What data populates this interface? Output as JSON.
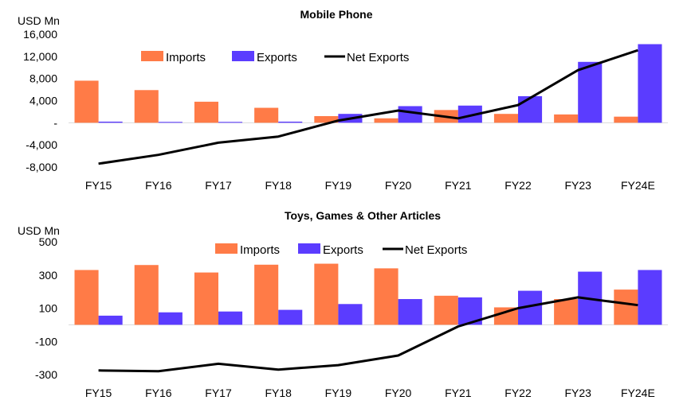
{
  "colors": {
    "imports": "#FF7B47",
    "exports": "#5B3CFF",
    "net": "#000000"
  },
  "chart_data": [
    {
      "type": "bar",
      "title": "Mobile Phone",
      "ylabel": "USD Mn",
      "ylim": [
        -8000,
        16000
      ],
      "yticks": [
        -8000,
        -4000,
        0,
        4000,
        8000,
        12000,
        16000
      ],
      "ytick_labels": [
        "-8,000",
        "-4,000",
        "-",
        "4,000",
        "8,000",
        "12,000",
        "16,000"
      ],
      "categories": [
        "FY15",
        "FY16",
        "FY17",
        "FY18",
        "FY19",
        "FY20",
        "FY21",
        "FY22",
        "FY23",
        "FY24E"
      ],
      "legend": "top",
      "series": [
        {
          "name": "Imports",
          "kind": "bar",
          "values": [
            7600,
            5900,
            3800,
            2700,
            1200,
            800,
            2300,
            1600,
            1500,
            1100
          ]
        },
        {
          "name": "Exports",
          "kind": "bar",
          "values": [
            200,
            150,
            150,
            200,
            1600,
            3000,
            3100,
            4800,
            11000,
            14200
          ]
        },
        {
          "name": "Net Exports",
          "kind": "line",
          "values": [
            -7400,
            -5800,
            -3600,
            -2500,
            400,
            2200,
            800,
            3200,
            9500,
            13100
          ]
        }
      ]
    },
    {
      "type": "bar",
      "title": "Toys, Games & Other Articles",
      "ylabel": "USD Mn",
      "ylim": [
        -300,
        500
      ],
      "yticks": [
        -300,
        -100,
        100,
        300,
        500
      ],
      "ytick_labels": [
        "-300",
        "-100",
        "100",
        "300",
        "500"
      ],
      "categories": [
        "FY15",
        "FY16",
        "FY17",
        "FY18",
        "FY19",
        "FY20",
        "FY21",
        "FY22",
        "FY23",
        "FY24E"
      ],
      "legend": "top",
      "series": [
        {
          "name": "Imports",
          "kind": "bar",
          "values": [
            330,
            360,
            315,
            362,
            368,
            340,
            175,
            105,
            155,
            212
          ]
        },
        {
          "name": "Exports",
          "kind": "bar",
          "values": [
            55,
            75,
            80,
            90,
            125,
            155,
            165,
            205,
            320,
            330
          ]
        },
        {
          "name": "Net Exports",
          "kind": "line",
          "values": [
            -275,
            -280,
            -235,
            -270,
            -243,
            -185,
            -10,
            100,
            165,
            118
          ]
        }
      ]
    }
  ]
}
